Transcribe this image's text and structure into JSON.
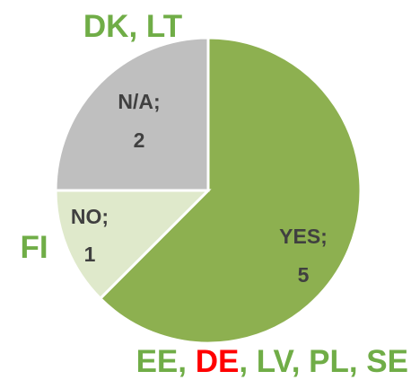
{
  "chart_data": {
    "type": "pie",
    "categories": [
      "YES;",
      "NO;",
      "N/A;"
    ],
    "values": [
      5,
      1,
      2
    ],
    "colors": [
      "#8db050",
      "#dfe9cb",
      "#bfbfbf"
    ],
    "annotations": [
      {
        "parts": [
          {
            "text": "DK, LT",
            "color": "#70ad47"
          }
        ]
      },
      {
        "parts": [
          {
            "text": "FI",
            "color": "#70ad47"
          }
        ]
      },
      {
        "parts": [
          {
            "text": "EE, ",
            "color": "#70ad47"
          },
          {
            "text": "DE",
            "color": "#ff0000"
          },
          {
            "text": ", LV, PL, SE",
            "color": "#70ad47"
          }
        ]
      }
    ]
  }
}
